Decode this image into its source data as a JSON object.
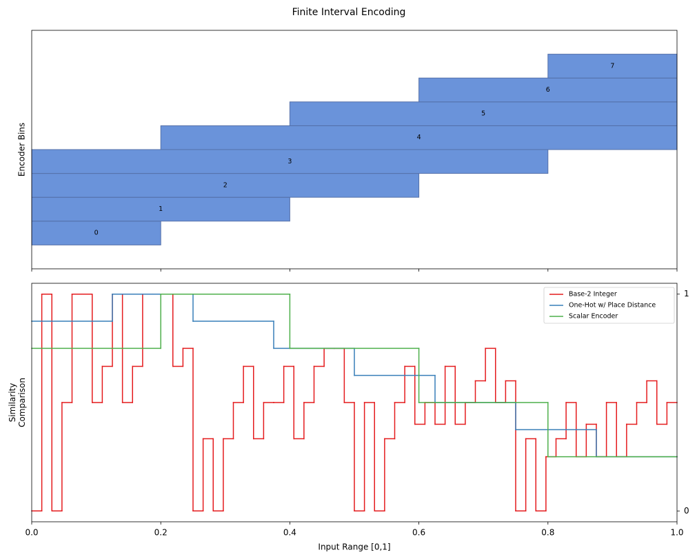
{
  "chart_data": [
    {
      "type": "interval-bar",
      "title": "Finite Interval Encoding",
      "ylabel": "Encoder Bins",
      "categories": [
        "0",
        "1",
        "2",
        "3",
        "4",
        "5",
        "6",
        "7"
      ],
      "starts": [
        0,
        0,
        0,
        0,
        0.2,
        0.4,
        0.6,
        0.8
      ],
      "ends": [
        0.2,
        0.4,
        0.6,
        0.8,
        1,
        1,
        1,
        1
      ],
      "color": "#6a93da",
      "edgecolor": "#5470a8",
      "xlim": [
        0,
        1
      ],
      "xticks": [
        0,
        0.2,
        0.4,
        0.6,
        0.8,
        1
      ],
      "ylim": [
        -1,
        9
      ]
    },
    {
      "type": "step-line",
      "xlabel": "Input Range [0,1]",
      "ylabel": "Similarity\nComparison",
      "xlim": [
        0,
        1
      ],
      "ylim": [
        -0.05,
        1.05
      ],
      "xticks": [
        {
          "value": 0,
          "label": "0.0"
        },
        {
          "value": 0.2,
          "label": "0.2"
        },
        {
          "value": 0.4,
          "label": "0.4"
        },
        {
          "value": 0.6,
          "label": "0.6"
        },
        {
          "value": 0.8,
          "label": "0.8"
        },
        {
          "value": 1,
          "label": "1.0"
        }
      ],
      "yticks": [
        0,
        1
      ],
      "yaxis_side": "right",
      "legend": "upper right",
      "series": [
        {
          "name": "Base-2 Integer",
          "color": "#e41a1c",
          "x": [
            0,
            0.015625,
            0.03125,
            0.046875,
            0.0625,
            0.078125,
            0.09375,
            0.109375,
            0.125,
            0.140625,
            0.15625,
            0.171875,
            0.1875,
            0.203125,
            0.21875,
            0.234375,
            0.25,
            0.265625,
            0.28125,
            0.296875,
            0.3125,
            0.328125,
            0.34375,
            0.359375,
            0.375,
            0.390625,
            0.40625,
            0.421875,
            0.4375,
            0.453125,
            0.46875,
            0.484375,
            0.5,
            0.515625,
            0.53125,
            0.546875,
            0.5625,
            0.578125,
            0.59375,
            0.609375,
            0.625,
            0.640625,
            0.65625,
            0.671875,
            0.6875,
            0.703125,
            0.71875,
            0.734375,
            0.75,
            0.765625,
            0.78125,
            0.796875,
            0.8125,
            0.828125,
            0.84375,
            0.859375,
            0.875,
            0.890625,
            0.90625,
            0.921875,
            0.9375,
            0.953125,
            0.96875,
            0.984375
          ],
          "values": [
            0,
            1,
            0,
            0.5,
            1,
            1,
            0.5,
            0.667,
            1,
            0.5,
            0.667,
            1,
            1,
            1,
            0.667,
            0.75,
            0,
            0.333,
            0,
            0.333,
            0.5,
            0.667,
            0.333,
            0.5,
            0.5,
            0.667,
            0.333,
            0.5,
            0.667,
            0.75,
            0.75,
            0.5,
            0,
            0.5,
            0,
            0.333,
            0.5,
            0.667,
            0.4,
            0.5,
            0.4,
            0.667,
            0.4,
            0.5,
            0.6,
            0.75,
            0.5,
            0.6,
            0,
            0.333,
            0,
            0.25,
            0.333,
            0.5,
            0.25,
            0.4,
            0.25,
            0.5,
            0.25,
            0.4,
            0.5,
            0.6,
            0.4,
            0.5
          ]
        },
        {
          "name": "One-Hot w/ Place Distance",
          "color": "#377eb8",
          "x": [
            0,
            0.125,
            0.25,
            0.375,
            0.5,
            0.625,
            0.75,
            0.875
          ],
          "values": [
            0.875,
            1,
            0.875,
            0.75,
            0.625,
            0.5,
            0.375,
            0.25
          ]
        },
        {
          "name": "Scalar Encoder",
          "color": "#4daf4a",
          "x": [
            0,
            0.2,
            0.4,
            0.6,
            0.8
          ],
          "values": [
            0.75,
            1,
            0.75,
            0.5,
            0.25
          ]
        }
      ]
    }
  ]
}
